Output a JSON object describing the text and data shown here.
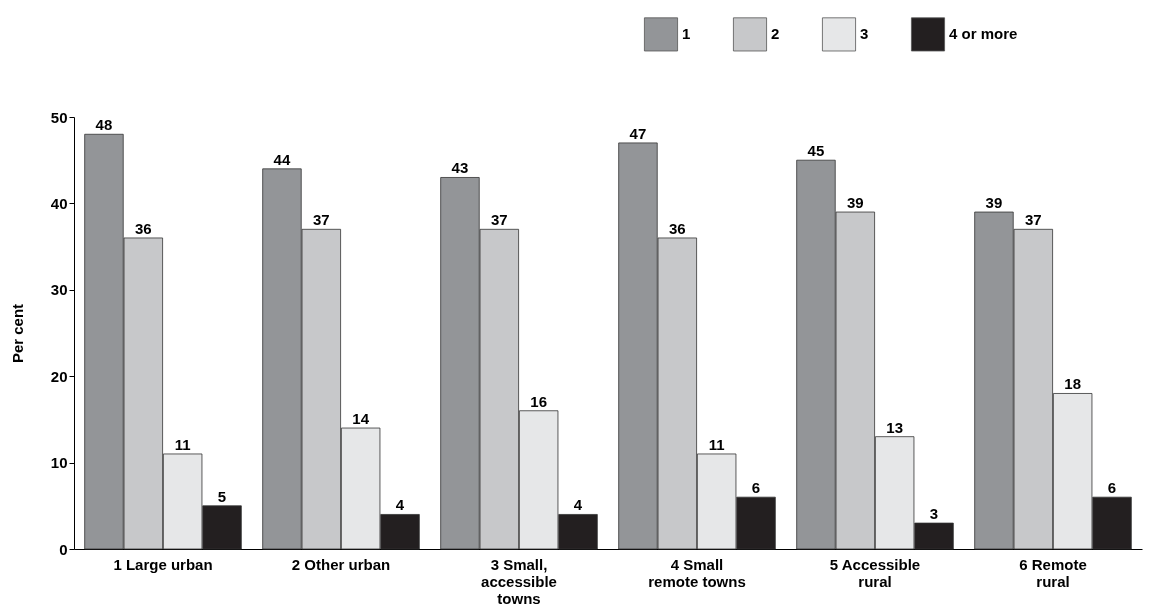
{
  "chart_data": {
    "type": "bar",
    "ylabel": "Per cent",
    "categories": [
      "1 Large urban",
      "2 Other urban",
      "3 Small, accessible towns",
      "4 Small remote towns",
      "5 Accessible rural",
      "6 Remote rural"
    ],
    "series": [
      {
        "name": "1",
        "color": "#939598",
        "values": [
          48,
          44,
          43,
          47,
          45,
          39
        ]
      },
      {
        "name": "2",
        "color": "#c7c8ca",
        "values": [
          36,
          37,
          37,
          36,
          39,
          37
        ]
      },
      {
        "name": "3",
        "color": "#e6e7e8",
        "values": [
          11,
          14,
          16,
          11,
          13,
          18
        ]
      },
      {
        "name": "4 or more",
        "color": "#231f20",
        "values": [
          5,
          4,
          4,
          6,
          3,
          6
        ]
      }
    ],
    "ylim": [
      0,
      50
    ],
    "yticks": [
      0,
      10,
      20,
      30,
      40,
      50
    ],
    "data_labels": true,
    "legend": "top right"
  }
}
